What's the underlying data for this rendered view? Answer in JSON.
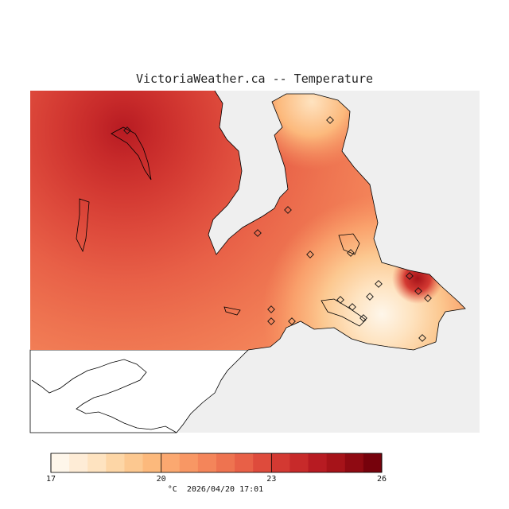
{
  "title": "VictoriaWeather.ca -- Temperature",
  "legend": {
    "unit": "°C",
    "timestamp": "2026/04/20 17:01",
    "min": 17,
    "max": 26,
    "tick_values": [
      17,
      20,
      23,
      26
    ],
    "tick_labels": [
      "17",
      "20",
      "23",
      "26"
    ],
    "color_bins": [
      "#fef6ea",
      "#feecd6",
      "#fee3c0",
      "#fdd6a6",
      "#fcc890",
      "#fcb97c",
      "#fba870",
      "#f89764",
      "#f4855a",
      "#ee7350",
      "#e86047",
      "#de4b3c",
      "#d33932",
      "#c72a2a",
      "#b71b22",
      "#a61319",
      "#8f0a12",
      "#76020c"
    ]
  },
  "stations": [
    {
      "lon": 160,
      "lat": 164
    },
    {
      "lon": 415,
      "lat": 151
    },
    {
      "lon": 324,
      "lat": 293
    },
    {
      "lon": 362,
      "lat": 264
    },
    {
      "lon": 390,
      "lat": 320
    },
    {
      "lon": 441,
      "lat": 318
    },
    {
      "lon": 476,
      "lat": 357
    },
    {
      "lon": 515,
      "lat": 347
    },
    {
      "lon": 526,
      "lat": 366
    },
    {
      "lon": 538,
      "lat": 375
    },
    {
      "lon": 465,
      "lat": 373
    },
    {
      "lon": 428,
      "lat": 377
    },
    {
      "lon": 443,
      "lat": 386
    },
    {
      "lon": 341,
      "lat": 389
    },
    {
      "lon": 341,
      "lat": 404
    },
    {
      "lon": 367,
      "lat": 404
    },
    {
      "lon": 457,
      "lat": 400
    },
    {
      "lon": 531,
      "lat": 425
    }
  ]
}
